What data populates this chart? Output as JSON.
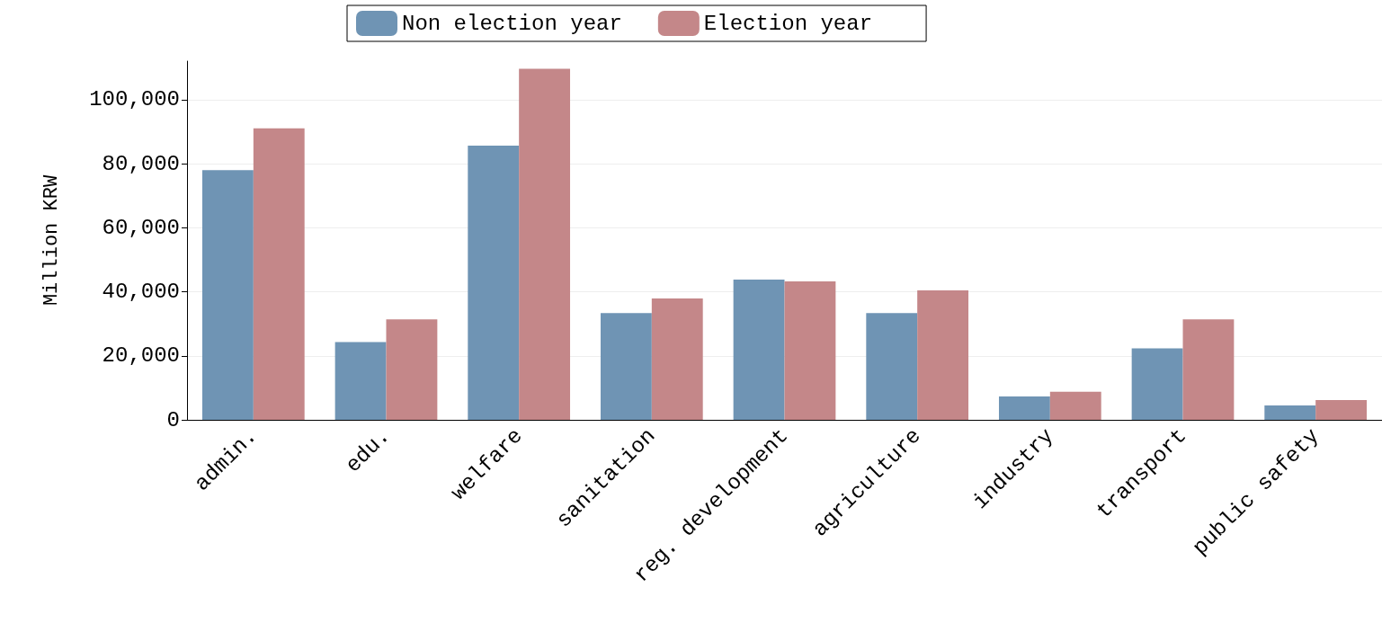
{
  "chart_data": {
    "type": "bar",
    "ylabel": "Million KRW",
    "categories": [
      "admin.",
      "edu.",
      "welfare",
      "sanitation",
      "reg. development",
      "agriculture",
      "industry",
      "transport",
      "public safety"
    ],
    "series": [
      {
        "name": "Non election year",
        "color": "#6f94b4",
        "values": [
          78000,
          24300,
          85600,
          33300,
          43800,
          33300,
          7300,
          22300,
          4500
        ]
      },
      {
        "name": "Election year",
        "color": "#c48789",
        "values": [
          91000,
          31400,
          109600,
          37900,
          43200,
          40400,
          8800,
          31400,
          6200
        ]
      }
    ],
    "ylim": [
      0,
      112000
    ],
    "yticks": [
      0,
      {
        "value": 20000,
        "label": "20,000"
      },
      {
        "value": 40000,
        "label": "40,000"
      },
      {
        "value": 60000,
        "label": "60,000"
      },
      {
        "value": 80000,
        "label": "80,000"
      },
      {
        "value": 100000,
        "label": "100,000"
      }
    ],
    "grid": "y",
    "legend": "top"
  }
}
